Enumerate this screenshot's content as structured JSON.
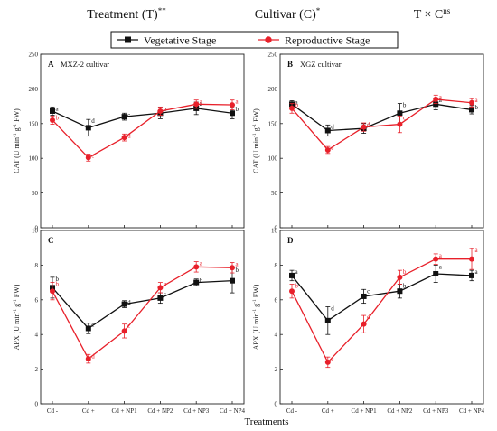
{
  "header": {
    "items": [
      {
        "id": "treatment",
        "base": "Treatment (T)",
        "sup": "**"
      },
      {
        "id": "cultivar",
        "base": "Cultivar (C)",
        "sup": "*"
      },
      {
        "id": "interaction",
        "base": "T × C",
        "sup": "ns"
      }
    ]
  },
  "legend": {
    "entries": [
      {
        "name": "Vegetative Stage",
        "color": "#111111",
        "marker": "square"
      },
      {
        "name": "Reproductive Stage",
        "color": "#e8202a",
        "marker": "circle"
      }
    ]
  },
  "xlabel_common": "Treatments",
  "chart_data": [
    {
      "type": "line",
      "panel": "A",
      "subtitle": "MXZ-2  cultivar",
      "ylabel": {
        "base": "CAT (U min",
        "sup1": "-1",
        "mid": " g",
        "sup2": "-1",
        "end": " FW)"
      },
      "ylim": [
        0,
        250
      ],
      "yticks": [
        0,
        50,
        100,
        150,
        200,
        250
      ],
      "categories": [
        "Cd -",
        "Cd +",
        "Cd + NP1",
        "Cd + NP2",
        "Cd + NP3",
        "Cd + NP4"
      ],
      "show_xticks": false,
      "series": [
        {
          "name": "Vegetative Stage",
          "values": [
            168,
            144,
            160,
            165,
            172,
            165
          ],
          "errors": [
            6,
            12,
            5,
            8,
            9,
            8
          ],
          "letters": [
            "a",
            "d",
            "c",
            "b",
            "a",
            "b"
          ]
        },
        {
          "name": "Reproductive Stage",
          "values": [
            155,
            101,
            130,
            168,
            178,
            177
          ],
          "errors": [
            6,
            5,
            5,
            6,
            6,
            7
          ],
          "letters": [
            "b",
            "e",
            "d",
            "b",
            "a",
            "a"
          ]
        }
      ]
    },
    {
      "type": "line",
      "panel": "B",
      "subtitle": "XGZ  cultivar",
      "ylabel": {
        "base": "CAT (U min",
        "sup1": "-1",
        "mid": " g",
        "sup2": "-1",
        "end": " FW)"
      },
      "ylim": [
        0,
        250
      ],
      "yticks": [
        0,
        50,
        100,
        150,
        200,
        250
      ],
      "categories": [
        "Cd -",
        "Cd +",
        "Cd + NP1",
        "Cd + NP2",
        "Cd + NP3",
        "Cd + NP4"
      ],
      "show_xticks": false,
      "series": [
        {
          "name": "Vegetative Stage",
          "values": [
            178,
            140,
            143,
            165,
            178,
            170
          ],
          "errors": [
            5,
            8,
            7,
            14,
            8,
            6
          ],
          "letters": [
            "a",
            "d",
            "d",
            "b",
            "a",
            "b"
          ]
        },
        {
          "name": "Reproductive Stage",
          "values": [
            172,
            112,
            145,
            149,
            185,
            180
          ],
          "errors": [
            7,
            5,
            6,
            12,
            6,
            6
          ],
          "letters": [
            "b",
            "e",
            "d",
            "c",
            "a",
            "a"
          ]
        }
      ]
    },
    {
      "type": "line",
      "panel": "C",
      "subtitle": "",
      "ylabel": {
        "base": "APX (U min",
        "sup1": "-1",
        "mid": " g",
        "sup2": "-1",
        "end": " FW)"
      },
      "ylim": [
        0,
        10
      ],
      "yticks": [
        0,
        2,
        4,
        6,
        8,
        10
      ],
      "categories": [
        "Cd -",
        "Cd +",
        "Cd + NP1",
        "Cd + NP2",
        "Cd + NP3",
        "Cd + NP4"
      ],
      "show_xticks": true,
      "series": [
        {
          "name": "Vegetative Stage",
          "values": [
            6.7,
            4.35,
            5.75,
            6.1,
            7.0,
            7.1
          ],
          "errors": [
            0.6,
            0.3,
            0.2,
            0.3,
            0.2,
            0.7
          ],
          "letters": [
            "b",
            "c",
            "d",
            "c",
            "b",
            "b"
          ]
        },
        {
          "name": "Reproductive Stage",
          "values": [
            6.5,
            2.6,
            4.2,
            6.7,
            7.9,
            7.85
          ],
          "errors": [
            0.5,
            0.25,
            0.4,
            0.3,
            0.3,
            0.3
          ],
          "letters": [
            "b",
            "d",
            "c",
            "b",
            "a",
            "a"
          ]
        }
      ]
    },
    {
      "type": "line",
      "panel": "D",
      "subtitle": "",
      "ylabel": {
        "base": "APX (U min",
        "sup1": "-1",
        "mid": " g",
        "sup2": "-1",
        "end": " FW)"
      },
      "ylim": [
        0,
        10
      ],
      "yticks": [
        0,
        2,
        4,
        6,
        8,
        10
      ],
      "categories": [
        "Cd -",
        "Cd +",
        "Cd + NP1",
        "Cd + NP2",
        "Cd + NP3",
        "Cd + NP4"
      ],
      "show_xticks": true,
      "series": [
        {
          "name": "Vegetative Stage",
          "values": [
            7.4,
            4.8,
            6.2,
            6.5,
            7.5,
            7.4
          ],
          "errors": [
            0.3,
            0.8,
            0.4,
            0.4,
            0.5,
            0.3
          ],
          "letters": [
            "a",
            "d",
            "c",
            "b",
            "a",
            "a"
          ]
        },
        {
          "name": "Reproductive Stage",
          "values": [
            6.5,
            2.4,
            4.6,
            7.3,
            8.35,
            8.35
          ],
          "errors": [
            0.4,
            0.3,
            0.5,
            0.4,
            0.3,
            0.6
          ],
          "letters": [
            "b",
            "e",
            "d",
            "b",
            "a",
            "a"
          ]
        }
      ]
    }
  ]
}
